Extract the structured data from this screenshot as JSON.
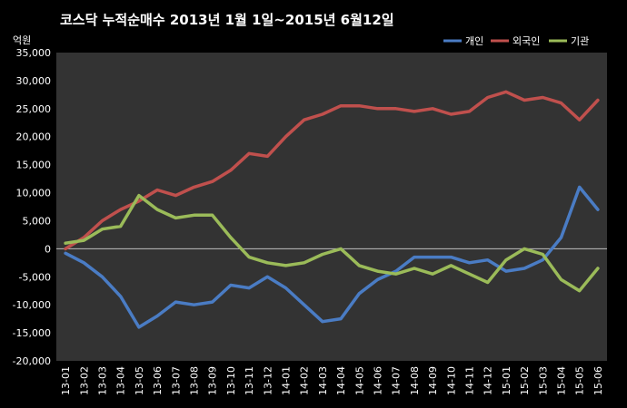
{
  "chart_data": {
    "type": "line",
    "title": "코스닥 누적순매수 2013년 1월 1일~2015년 6월12일",
    "unit_label": "억원",
    "ylim": [
      -20000,
      35000
    ],
    "yticks": [
      35000,
      30000,
      25000,
      20000,
      15000,
      10000,
      5000,
      0,
      -5000,
      -10000,
      -15000,
      -20000
    ],
    "ytick_labels": [
      "35,000",
      "30,000",
      "25,000",
      "20,000",
      "15,000",
      "10,000",
      "5,000",
      "0",
      "-5,000",
      "-10,000",
      "-15,000",
      "-20,000"
    ],
    "categories": [
      "13-01",
      "13-02",
      "13-03",
      "13-04",
      "13-05",
      "13-06",
      "13-07",
      "13-08",
      "13-09",
      "13-10",
      "13-11",
      "13-12",
      "14-01",
      "14-02",
      "14-03",
      "14-04",
      "14-05",
      "14-06",
      "14-07",
      "14-08",
      "14-09",
      "14-10",
      "14-11",
      "14-12",
      "15-01",
      "15-02",
      "15-03",
      "15-04",
      "15-05",
      "15-06"
    ],
    "legend_position": "top-right",
    "grid": false,
    "background": "#333333",
    "series": [
      {
        "name": "개인",
        "color": "#4a7cc4",
        "values": [
          -800,
          -2500,
          -5000,
          -8500,
          -14000,
          -12000,
          -9500,
          -10000,
          -9500,
          -6500,
          -7000,
          -5000,
          -7000,
          -10000,
          -13000,
          -12500,
          -8000,
          -5500,
          -4000,
          -1500,
          -1500,
          -1500,
          -2500,
          -2000,
          -4000,
          -3500,
          -2000,
          2000,
          11000,
          7000
        ]
      },
      {
        "name": "외국인",
        "color": "#c0504d",
        "values": [
          0,
          2000,
          5000,
          7000,
          8500,
          10500,
          9500,
          11000,
          12000,
          14000,
          17000,
          16500,
          20000,
          23000,
          24000,
          25500,
          25500,
          25000,
          25000,
          24500,
          25000,
          24000,
          24500,
          27000,
          28000,
          26500,
          27000,
          26000,
          23000,
          26500
        ]
      },
      {
        "name": "기관",
        "color": "#9bbb59",
        "values": [
          1000,
          1500,
          3500,
          4000,
          9500,
          7000,
          5500,
          6000,
          6000,
          2000,
          -1500,
          -2500,
          -3000,
          -2500,
          -1000,
          0,
          -3000,
          -4000,
          -4500,
          -3500,
          -4500,
          -3000,
          -4500,
          -6000,
          -2000,
          0,
          -1000,
          -5500,
          -7500,
          -3500
        ]
      }
    ]
  }
}
